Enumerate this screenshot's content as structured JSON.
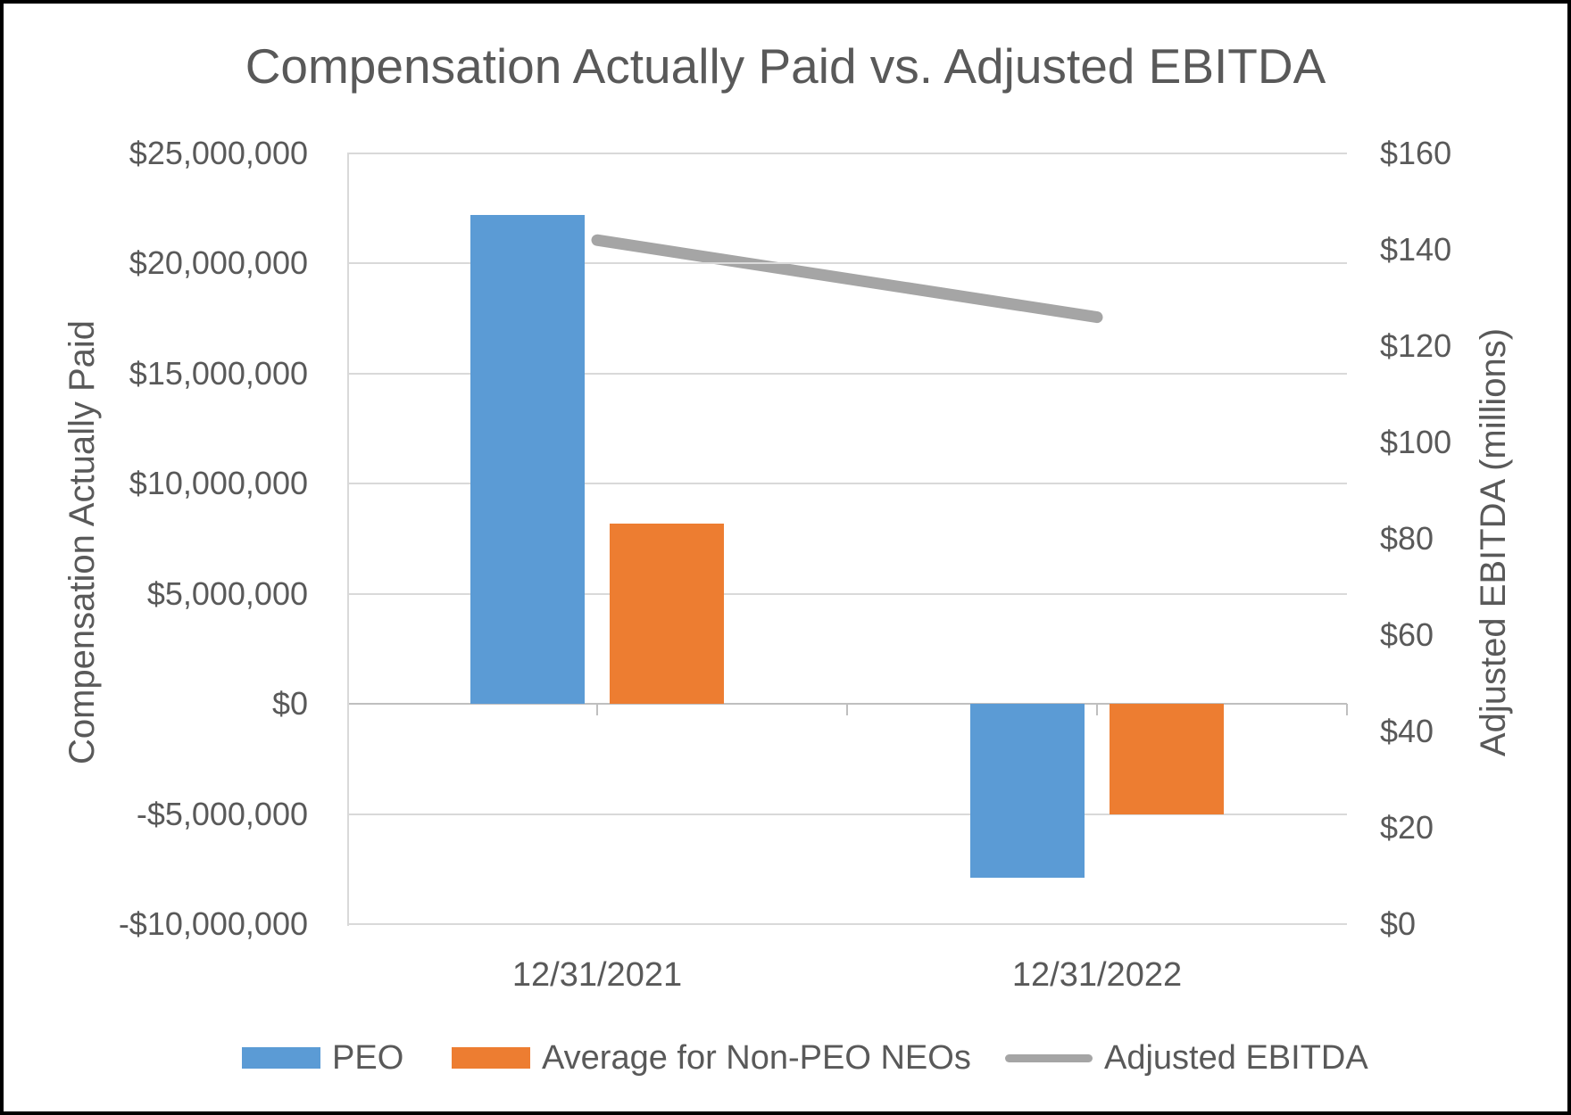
{
  "title": "Compensation Actually Paid vs. Adjusted EBITDA",
  "colors": {
    "peo_bar": "#5B9BD5",
    "non_peo_bar": "#ED7D31",
    "ebitda_line": "#A5A5A5",
    "text": "#595959",
    "gridline": "#D9D9D9",
    "zero_axis_line": "#BFBFBF",
    "page_border": "#000000",
    "background": "#FFFFFF"
  },
  "chart_data": {
    "type": "combo-bar-line",
    "categories": [
      "12/31/2021",
      "12/31/2022"
    ],
    "bar_series": [
      {
        "name": "PEO",
        "color": "#5B9BD5",
        "axis": "left",
        "values": [
          22200000,
          -7900000
        ]
      },
      {
        "name": "Average for Non-PEO NEOs",
        "color": "#ED7D31",
        "axis": "left",
        "values": [
          8200000,
          -5000000
        ]
      }
    ],
    "line_series": [
      {
        "name": "Adjusted EBITDA",
        "color": "#A5A5A5",
        "axis": "right",
        "values": [
          142,
          126
        ]
      }
    ],
    "left_axis": {
      "title": "Compensation Actually Paid",
      "min": -10000000,
      "max": 25000000,
      "step": 5000000,
      "tick_labels": [
        "$25,000,000",
        "$20,000,000",
        "$15,000,000",
        "$10,000,000",
        "$5,000,000",
        "$0",
        "-$5,000,000",
        "-$10,000,000"
      ]
    },
    "right_axis": {
      "title": "Adjusted EBITDA (millions)",
      "min": 0,
      "max": 160,
      "step": 20,
      "tick_labels": [
        "$160",
        "$140",
        "$120",
        "$100",
        "$80",
        "$60",
        "$40",
        "$20",
        "$0"
      ]
    },
    "grid": true,
    "legend_position": "bottom"
  },
  "legend": {
    "items": [
      {
        "label": "PEO",
        "swatch": "bar",
        "color": "#5B9BD5"
      },
      {
        "label": "Average for Non-PEO NEOs",
        "swatch": "bar",
        "color": "#ED7D31"
      },
      {
        "label": "Adjusted EBITDA",
        "swatch": "line",
        "color": "#A5A5A5"
      }
    ]
  }
}
